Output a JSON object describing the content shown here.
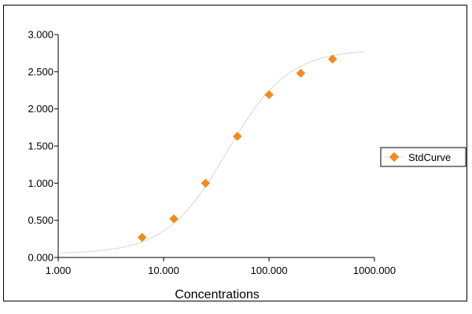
{
  "chart_data": {
    "type": "scatter",
    "xscale": "log",
    "xlim": [
      1,
      1000
    ],
    "ylim": [
      0,
      3
    ],
    "xlabel": "Concentrations",
    "ylabel": "",
    "x_ticks": [
      1,
      10,
      100,
      1000
    ],
    "x_tick_labels": [
      "1.000",
      "10.000",
      "100.000",
      "1000.000"
    ],
    "y_ticks": [
      0,
      0.5,
      1,
      1.5,
      2,
      2.5,
      3
    ],
    "y_tick_labels": [
      "0.000",
      "0.500",
      "1.000",
      "1.500",
      "2.000",
      "2.500",
      "3.000"
    ],
    "grid": false,
    "legend_position": "right",
    "series": [
      {
        "name": "StdCurve",
        "marker": "diamond",
        "color": "#F28A1E",
        "x": [
          6.25,
          12.5,
          25,
          50,
          100,
          200,
          400
        ],
        "y": [
          0.27,
          0.52,
          1.0,
          1.63,
          2.19,
          2.48,
          2.67
        ]
      }
    ],
    "fit_curve": {
      "type": "4PL",
      "color": "#9a9a9a",
      "style": "dotted",
      "x_range": [
        1,
        800
      ],
      "params": {
        "bottom": 0.05,
        "top": 2.8,
        "ec50": 40,
        "hill": 1.5
      }
    }
  }
}
